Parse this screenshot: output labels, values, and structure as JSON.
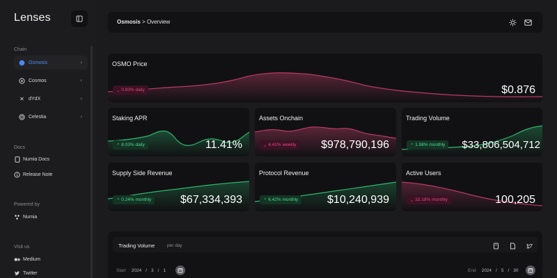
{
  "app": {
    "name": "Lenses"
  },
  "sidebar": {
    "chain_label": "Chain",
    "chains": [
      {
        "label": "Osmosis",
        "icon": "osmosis-icon",
        "active": true
      },
      {
        "label": "Cosmos",
        "icon": "cosmos-icon",
        "active": false
      },
      {
        "label": "dYdX",
        "icon": "dydx-icon",
        "active": false
      },
      {
        "label": "Celestia",
        "icon": "celestia-icon",
        "active": false
      }
    ],
    "docs_label": "Docs",
    "docs": [
      {
        "label": "Numia Docs",
        "icon": "book-icon"
      },
      {
        "label": "Release Note",
        "icon": "info-icon"
      }
    ],
    "powered_label": "Powered by",
    "powered": {
      "label": "Numia",
      "icon": "numia-icon"
    },
    "visit_label": "Visit us",
    "visit": [
      {
        "label": "Medium",
        "icon": "medium-icon"
      },
      {
        "label": "Twitter",
        "icon": "twitter-icon"
      }
    ]
  },
  "header": {
    "breadcrumb_chain": "Osmosis",
    "breadcrumb_sep": ">",
    "breadcrumb_page": "Overview"
  },
  "cards": {
    "price": {
      "title": "OSMO Price",
      "change": "0.93% daily",
      "direction": "down",
      "value": "$0.876"
    },
    "staking": {
      "title": "Staking APR",
      "change": "8.03% daily",
      "direction": "up",
      "value": "11.41%"
    },
    "assets": {
      "title": "Assets Onchain",
      "change": "4.41% weekly",
      "direction": "down",
      "value": "$978,790,196"
    },
    "volume": {
      "title": "Trading Volume",
      "change": "1.98% monthly",
      "direction": "up",
      "value": "$33,806,504,712"
    },
    "supply": {
      "title": "Supply Side Revenue",
      "change": "0.24% monthly",
      "direction": "up",
      "value": "$67,334,393"
    },
    "protocol": {
      "title": "Protocol Revenue",
      "change": "6.42% monthly",
      "direction": "up",
      "value": "$10,240,939"
    },
    "users": {
      "title": "Active Users",
      "change": "32.18% monthly",
      "direction": "down",
      "value": "100,205"
    }
  },
  "volume_chart": {
    "title": "Trading Volume",
    "subtitle": "per day",
    "start_label": "Start",
    "start": {
      "year": "2024",
      "sep1": "/",
      "month": "3",
      "sep2": "/",
      "day": "1"
    },
    "end_label": "End",
    "end": {
      "year": "2024",
      "sep1": "/",
      "month": "5",
      "sep2": "/",
      "day": "30"
    }
  },
  "colors": {
    "up": "#4ddc8d",
    "down": "#e24b7b",
    "active": "#4a8cff"
  }
}
